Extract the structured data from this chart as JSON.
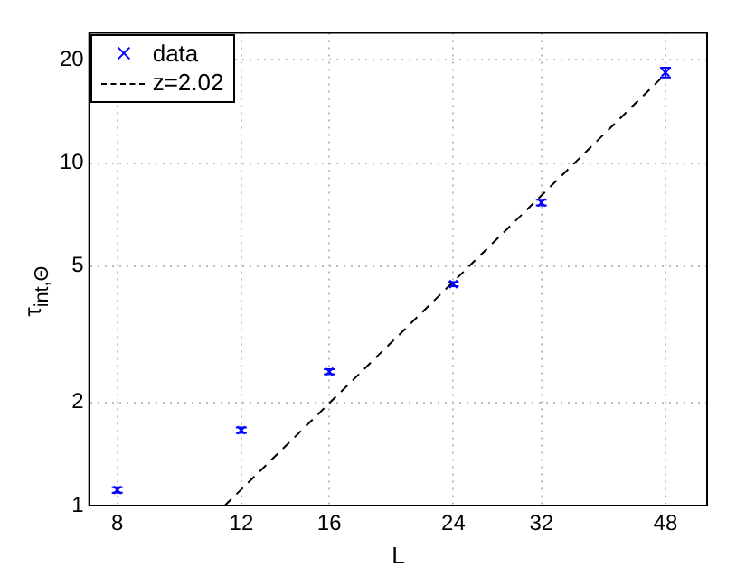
{
  "chart_data": {
    "type": "scatter",
    "xlabel": "L",
    "ylabel": "τ$_{int,Θ}$",
    "log": "xy",
    "grid": true,
    "legend": "top left",
    "xlim": [
      7.3,
      55
    ],
    "xticks": [
      8,
      12,
      16,
      24,
      32,
      48
    ],
    "ylim": [
      1,
      24
    ],
    "yticks": [
      1,
      2,
      5,
      10,
      20
    ],
    "series": [
      {
        "name": "data",
        "type": "scatter",
        "marker": "cross",
        "color": "#0000ff",
        "x": [
          8,
          12,
          16,
          24,
          32,
          48
        ],
        "values": [
          1.11,
          1.66,
          2.46,
          4.43,
          7.67,
          18.4
        ],
        "errors": [
          0.02,
          0.03,
          0.04,
          0.06,
          0.15,
          0.6
        ]
      },
      {
        "name": "z=2.02",
        "type": "line",
        "line_style": "dashed",
        "color": "#000000",
        "x": [
          11.37,
          48
        ],
        "values": [
          1,
          18.2
        ]
      }
    ]
  }
}
